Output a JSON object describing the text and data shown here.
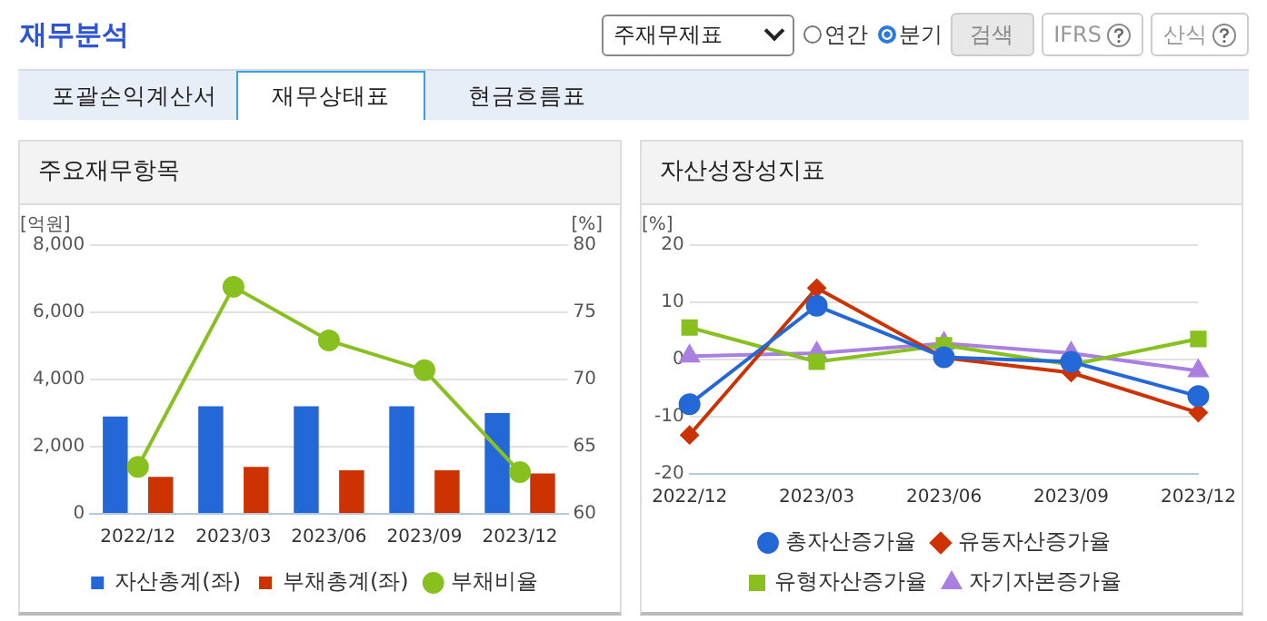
{
  "chart_data": [
    {
      "type": "other",
      "title": "재무분석",
      "annotations": [
        "주재무제표",
        "연간",
        "분기",
        "검색",
        "IFRS",
        "산식",
        "포괄손익계산서",
        "재무상태표",
        "현금흐름표"
      ]
    },
    {
      "type": "bar",
      "title": "주요재무항목",
      "ylabel": "[억원]",
      "y2label": "[%]",
      "categories": [
        "2022/12",
        "2023/03",
        "2023/06",
        "2023/09",
        "2023/12"
      ],
      "series": [
        {
          "name": "자산총계(좌)",
          "type": "bar",
          "color": "#2468d8",
          "values": [
            2900,
            3200,
            3200,
            3200,
            3000
          ]
        },
        {
          "name": "부채총계(좌)",
          "type": "bar",
          "color": "#cc3300",
          "values": [
            1100,
            1400,
            1300,
            1300,
            1200
          ]
        },
        {
          "name": "부채비율",
          "type": "line",
          "axis": "y2",
          "color": "#88c020",
          "marker": "circle",
          "values": [
            63.5,
            76.9,
            72.9,
            70.7,
            63.1
          ]
        }
      ],
      "ylim": [
        0,
        8000
      ],
      "yticks": [
        0,
        {
          "value": 2000,
          "label": "2,000"
        },
        {
          "value": 4000,
          "label": "4,000"
        },
        {
          "value": 6000,
          "label": "6,000"
        },
        {
          "value": 8000,
          "label": "8,000"
        }
      ],
      "y2lim": [
        60,
        80
      ],
      "y2ticks": [
        60,
        65,
        70,
        75,
        80
      ],
      "grid": "y",
      "legend": "bottom"
    },
    {
      "type": "line",
      "title": "자산성장성지표",
      "ylabel": "[%]",
      "categories": [
        "2022/12",
        "2023/03",
        "2023/06",
        "2023/09",
        "2023/12"
      ],
      "series": [
        {
          "name": "총자산증가율",
          "color": "#2468d8",
          "marker": "circle",
          "values": [
            -7.8,
            9.4,
            0.4,
            -0.4,
            -6.4
          ]
        },
        {
          "name": "유동자산증가율",
          "color": "#cc3300",
          "marker": "diamond",
          "values": [
            -13.2,
            12.5,
            0.3,
            -2.3,
            -9.3
          ]
        },
        {
          "name": "유형자산증가율",
          "color": "#88c020",
          "marker": "square",
          "values": [
            5.6,
            -0.4,
            2.5,
            -0.9,
            3.6
          ]
        },
        {
          "name": "자기자본증가율",
          "color": "#a97fe0",
          "marker": "triangle",
          "values": [
            0.6,
            1.1,
            2.8,
            1.1,
            -2.0
          ]
        }
      ],
      "ylim": [
        -20,
        20
      ],
      "yticks": [
        -20,
        -10,
        0,
        10,
        20
      ],
      "grid": "y",
      "legend": "bottom"
    }
  ]
}
